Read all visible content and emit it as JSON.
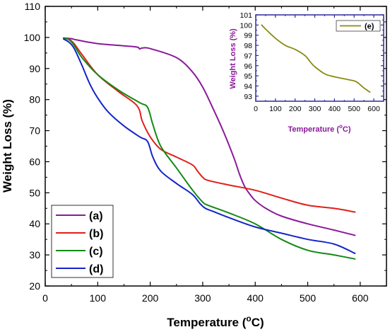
{
  "chart_data": [
    {
      "type": "line",
      "title": "",
      "xlabel": "Temperature (",
      "xlabel_sup": "o",
      "xlabel_unit": "C)",
      "ylabel": "Weight Loss (%)",
      "xlim": [
        0,
        650
      ],
      "ylim": [
        20,
        110
      ],
      "xticks": [
        0,
        100,
        200,
        300,
        400,
        500,
        600
      ],
      "yticks": [
        20,
        30,
        40,
        50,
        60,
        70,
        80,
        90,
        100,
        110
      ],
      "grid": false,
      "legend_position": "bottom-left",
      "series": [
        {
          "name": "(a)",
          "color": "#8b1a9a",
          "x": [
            35,
            50,
            60,
            100,
            150,
            175,
            180,
            185,
            200,
            250,
            280,
            300,
            320,
            340,
            360,
            370,
            380,
            390,
            400,
            420,
            450,
            500,
            550,
            590
          ],
          "y": [
            99.8,
            99.6,
            99.2,
            98.0,
            97.3,
            96.9,
            96.3,
            96.6,
            96.4,
            93.5,
            89.0,
            84.0,
            77.0,
            69.5,
            61.0,
            56.0,
            52.0,
            49.5,
            47.5,
            45.0,
            42.5,
            40.0,
            38.0,
            36.3
          ]
        },
        {
          "name": "(b)",
          "color": "#e0201b",
          "x": [
            35,
            45,
            55,
            70,
            100,
            140,
            175,
            185,
            200,
            220,
            250,
            280,
            290,
            300,
            310,
            350,
            400,
            450,
            500,
            550,
            590
          ],
          "y": [
            99.8,
            99.5,
            98.0,
            94.5,
            88.0,
            82.5,
            78.0,
            73.0,
            68.0,
            64.0,
            61.5,
            59.0,
            57.0,
            55.0,
            54.0,
            52.5,
            50.8,
            48.3,
            46.0,
            45.0,
            43.8
          ]
        },
        {
          "name": "(c)",
          "color": "#128a14",
          "x": [
            35,
            45,
            55,
            70,
            100,
            140,
            180,
            195,
            205,
            220,
            250,
            280,
            300,
            310,
            350,
            400,
            450,
            500,
            550,
            590
          ],
          "y": [
            99.8,
            99.3,
            97.5,
            93.5,
            88.0,
            83.0,
            79.0,
            77.5,
            72.0,
            65.0,
            58.0,
            51.0,
            47.0,
            46.0,
            43.5,
            40.0,
            35.0,
            31.5,
            30.0,
            28.7
          ]
        },
        {
          "name": "(d)",
          "color": "#1424c8",
          "x": [
            35,
            45,
            55,
            70,
            85,
            100,
            120,
            150,
            180,
            195,
            205,
            220,
            250,
            280,
            295,
            305,
            320,
            350,
            400,
            450,
            500,
            550,
            590
          ],
          "y": [
            99.5,
            98.5,
            96.5,
            91.0,
            85.0,
            80.5,
            76.0,
            71.5,
            68.0,
            66.5,
            61.5,
            57.0,
            53.0,
            49.5,
            46.5,
            45.0,
            44.0,
            42.0,
            39.0,
            37.0,
            35.0,
            33.5,
            30.5
          ]
        }
      ]
    },
    {
      "type": "line",
      "title": "",
      "xlabel": "Temperature (",
      "xlabel_sup": "o",
      "xlabel_unit": "C)",
      "ylabel": "Weight Loss (%)",
      "xlim": [
        0,
        650
      ],
      "ylim": [
        92.5,
        101
      ],
      "xticks": [
        0,
        100,
        200,
        300,
        400,
        500,
        600
      ],
      "yticks": [
        93,
        94,
        95,
        96,
        97,
        98,
        99,
        100,
        101
      ],
      "grid": false,
      "legend_position": "top-right",
      "axis_color": "#2b2b9a",
      "label_color": "#8b1a9a",
      "series": [
        {
          "name": "(e)",
          "color": "#8a8a12",
          "x": [
            30,
            50,
            100,
            150,
            200,
            250,
            280,
            300,
            350,
            400,
            450,
            500,
            520,
            550,
            580
          ],
          "y": [
            100.0,
            99.6,
            98.7,
            98.0,
            97.6,
            97.0,
            96.3,
            95.9,
            95.2,
            94.9,
            94.7,
            94.5,
            94.3,
            93.8,
            93.4
          ]
        }
      ]
    }
  ]
}
